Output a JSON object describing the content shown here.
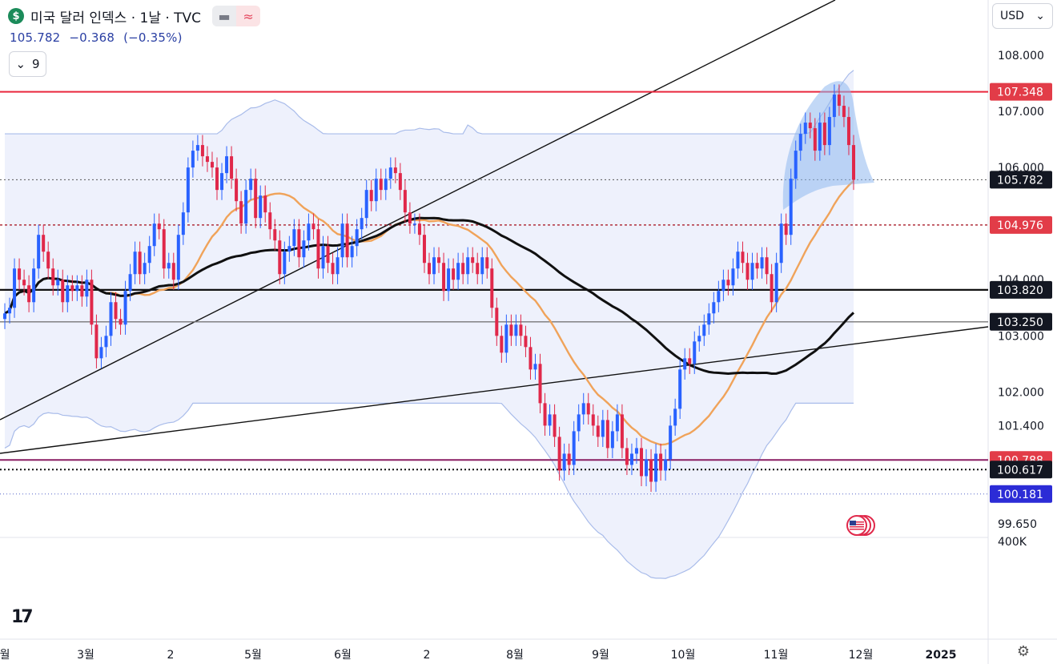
{
  "header": {
    "logo_glyph": "$",
    "title": "미국 달러 인덱스 · 1날 · TVC",
    "indicator_toggle_icon": "minus-icon",
    "compare_icon": "approx-icon",
    "price": "105.782",
    "change": "−0.368",
    "change_pct": "(−0.35%)",
    "collapse_count": "9"
  },
  "currency": {
    "label": "USD"
  },
  "logo": {
    "text": "17"
  },
  "colors": {
    "up": "#2962ff",
    "down": "#e0284a",
    "resistance": "#e9283e",
    "ma_slow": "#101010",
    "ma_fast": "#f0a35a",
    "bb": "#a9bcea",
    "bb_fill": "#eef1fc",
    "highlight": "#8fb8ee",
    "price_label_bg": "#131722",
    "support_label_bg": "#e23c48",
    "low_label_bg": "#2c2cd6"
  },
  "chart_data": {
    "type": "candlestick",
    "title": "",
    "y_range": [
      99.4,
      108.3
    ],
    "y_ticks": [
      "108.000",
      "107.000",
      "106.000",
      "104.000",
      "103.000",
      "102.000",
      "101.400",
      "99.650",
      "400K"
    ],
    "x_ticks": [
      "월",
      "3월",
      "2",
      "5월",
      "6월",
      "2",
      "8월",
      "9월",
      "10월",
      "11월",
      "12월",
      "2025"
    ],
    "horizontal_levels": [
      {
        "label": "107.348",
        "value": 107.348,
        "style": "red-solid"
      },
      {
        "label": "105.782",
        "value": 105.782,
        "style": "last-price-dotted"
      },
      {
        "label": "104.976",
        "value": 104.976,
        "style": "red-dotted"
      },
      {
        "label": "103.820",
        "value": 103.82,
        "style": "black-solid"
      },
      {
        "label": "103.250",
        "value": 103.25,
        "style": "gray-solid"
      },
      {
        "label": "100.788",
        "value": 100.788,
        "style": "purple-solid"
      },
      {
        "label": "100.617",
        "value": 100.617,
        "style": "black-dotted"
      },
      {
        "label": "100.181",
        "value": 100.181,
        "style": "blue-dotted"
      }
    ],
    "closes": [
      103.4,
      103.5,
      104.2,
      104.0,
      103.9,
      103.6,
      104.2,
      104.8,
      104.5,
      104.2,
      103.9,
      104.0,
      103.6,
      103.9,
      103.8,
      103.9,
      103.7,
      104.0,
      103.2,
      102.6,
      102.8,
      103.0,
      103.6,
      103.3,
      103.2,
      103.8,
      104.1,
      104.5,
      104.1,
      104.3,
      104.6,
      105.0,
      104.9,
      104.2,
      104.3,
      104.0,
      104.8,
      105.2,
      106.0,
      106.3,
      106.4,
      106.2,
      106.1,
      106.0,
      105.6,
      105.9,
      106.2,
      105.8,
      105.4,
      105.0,
      105.6,
      105.8,
      105.1,
      105.5,
      105.2,
      104.9,
      104.7,
      104.1,
      104.5,
      104.6,
      104.9,
      104.4,
      104.7,
      105.0,
      104.9,
      104.2,
      104.6,
      104.3,
      104.1,
      104.4,
      105.0,
      104.4,
      104.6,
      104.9,
      105.1,
      105.6,
      105.4,
      105.8,
      105.6,
      105.8,
      106.0,
      105.9,
      105.6,
      105.2,
      105.0,
      105.0,
      104.8,
      104.3,
      104.1,
      104.4,
      104.3,
      103.8,
      104.2,
      104.0,
      104.3,
      104.1,
      104.4,
      104.3,
      104.1,
      104.4,
      104.2,
      103.5,
      103.0,
      102.7,
      103.2,
      103.0,
      103.2,
      103.0,
      102.8,
      102.4,
      102.5,
      101.8,
      101.4,
      101.6,
      101.2,
      100.6,
      100.9,
      100.7,
      101.3,
      101.6,
      101.8,
      101.6,
      101.4,
      101.2,
      101.5,
      101.0,
      101.3,
      101.6,
      101.0,
      100.7,
      100.9,
      101.0,
      100.5,
      100.8,
      100.4,
      100.9,
      100.6,
      100.8,
      101.4,
      101.7,
      102.4,
      102.6,
      102.5,
      102.9,
      103.0,
      103.2,
      103.4,
      103.6,
      103.8,
      104.0,
      103.9,
      104.2,
      104.5,
      104.3,
      104.0,
      104.3,
      104.2,
      104.4,
      104.1,
      103.6,
      104.3,
      105.0,
      104.8,
      105.8,
      106.3,
      106.6,
      106.8,
      106.7,
      106.3,
      106.8,
      106.4,
      106.9,
      107.3,
      107.1,
      106.9,
      106.4,
      105.78
    ]
  }
}
